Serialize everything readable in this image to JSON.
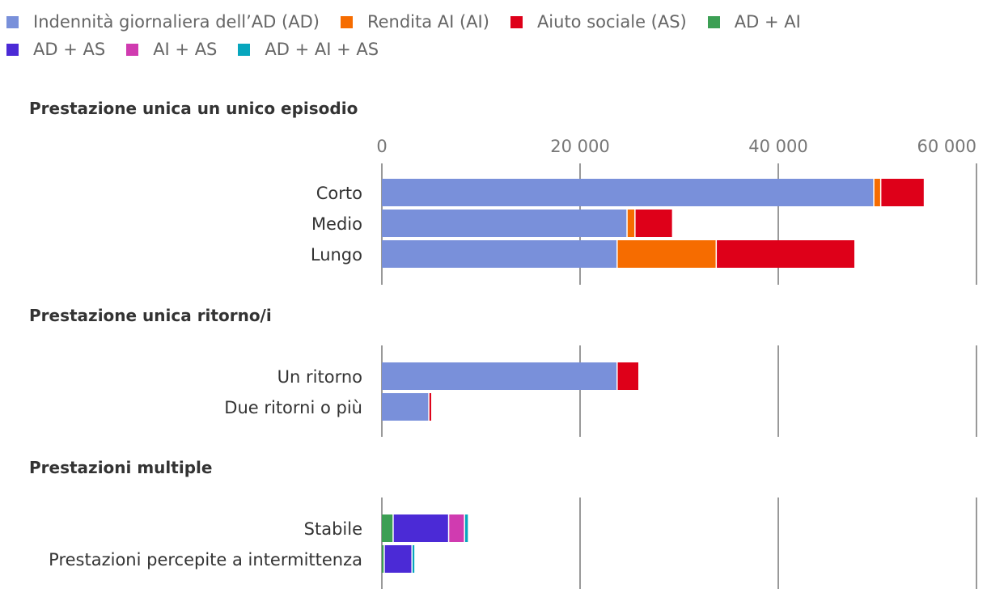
{
  "chart_data": {
    "type": "bar",
    "orientation": "horizontal",
    "stacked": true,
    "xlim": [
      0,
      60000
    ],
    "ticks": [
      0,
      20000,
      40000,
      60000
    ],
    "tick_labels": [
      "0",
      "20 000",
      "40 000",
      "60 000"
    ],
    "legend": [
      {
        "name": "Indennità giornaliera dell’AD (AD)",
        "color": "#7990da"
      },
      {
        "name": "Rendita AI (AI)",
        "color": "#f66c00"
      },
      {
        "name": "Aiuto sociale (AS)",
        "color": "#de0019"
      },
      {
        "name": "AD + AI",
        "color": "#3c9f54"
      },
      {
        "name": "AD + AS",
        "color": "#4b2ad6"
      },
      {
        "name": "AI + AS",
        "color": "#d03bb0"
      },
      {
        "name": "AD + AI + AS",
        "color": "#07a6bd"
      }
    ],
    "panels": [
      {
        "title": "Prestazione unica un unico episodio",
        "categories": [
          "Corto",
          "Medio",
          "Lungo"
        ],
        "series": [
          {
            "name": "Indennità giornaliera dell’AD (AD)",
            "values": [
              49700,
              24800,
              23800
            ]
          },
          {
            "name": "Rendita AI (AI)",
            "values": [
              700,
              800,
              10000
            ]
          },
          {
            "name": "Aiuto sociale (AS)",
            "values": [
              4400,
              3800,
              14000
            ]
          },
          {
            "name": "AD + AI",
            "values": [
              0,
              0,
              0
            ]
          },
          {
            "name": "AD + AS",
            "values": [
              0,
              0,
              0
            ]
          },
          {
            "name": "AI + AS",
            "values": [
              0,
              0,
              0
            ]
          },
          {
            "name": "AD + AI + AS",
            "values": [
              0,
              0,
              0
            ]
          }
        ]
      },
      {
        "title": "Prestazione unica ritorno/i",
        "categories": [
          "Un ritorno",
          "Due ritorni o più"
        ],
        "series": [
          {
            "name": "Indennità giornaliera dell’AD (AD)",
            "values": [
              23800,
              4800
            ]
          },
          {
            "name": "Rendita AI (AI)",
            "values": [
              0,
              0
            ]
          },
          {
            "name": "Aiuto sociale (AS)",
            "values": [
              2200,
              300
            ]
          },
          {
            "name": "AD + AI",
            "values": [
              0,
              0
            ]
          },
          {
            "name": "AD + AS",
            "values": [
              0,
              0
            ]
          },
          {
            "name": "AI + AS",
            "values": [
              0,
              0
            ]
          },
          {
            "name": "AD + AI + AS",
            "values": [
              0,
              0
            ]
          }
        ]
      },
      {
        "title": "Prestazioni multiple",
        "categories": [
          "Stabile",
          "Prestazioni percepite a intermittenza"
        ],
        "series": [
          {
            "name": "Indennità giornaliera dell’AD (AD)",
            "values": [
              0,
              0
            ]
          },
          {
            "name": "Rendita AI (AI)",
            "values": [
              0,
              0
            ]
          },
          {
            "name": "Aiuto sociale (AS)",
            "values": [
              0,
              0
            ]
          },
          {
            "name": "AD + AI",
            "values": [
              1200,
              300
            ]
          },
          {
            "name": "AD + AS",
            "values": [
              5600,
              2800
            ]
          },
          {
            "name": "AI + AS",
            "values": [
              1600,
              0
            ]
          },
          {
            "name": "AD + AI + AS",
            "values": [
              400,
              300
            ]
          }
        ]
      }
    ]
  }
}
